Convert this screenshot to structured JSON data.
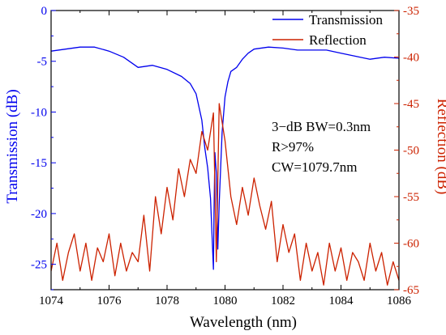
{
  "chart_data": {
    "type": "line",
    "xlabel": "Wavelength (nm)",
    "ylabel_left": "Transmission (dB)",
    "ylabel_right": "Reflection (dB)",
    "xlim": [
      1074,
      1086
    ],
    "ylim_left": [
      -27.5,
      0
    ],
    "ylim_right": [
      -65,
      -35
    ],
    "x_ticks": [
      1074,
      1076,
      1078,
      1080,
      1082,
      1084,
      1086
    ],
    "y_left_ticks": [
      0,
      -5,
      -10,
      -15,
      -20,
      -25
    ],
    "y_right_ticks": [
      -35,
      -40,
      -45,
      -50,
      -55,
      -60,
      -65
    ],
    "x_tick_labels": [
      "1074",
      "1076",
      "1078",
      "1080",
      "1082",
      "1084",
      "1086"
    ],
    "y_left_tick_labels": [
      "0",
      "-5",
      "-10",
      "-15",
      "-20",
      "-25"
    ],
    "y_right_tick_labels": [
      "-35",
      "-40",
      "-45",
      "-50",
      "-55",
      "-60",
      "-65"
    ],
    "legend_position": "top-right",
    "grid": false,
    "series": [
      {
        "name": "Transmission",
        "axis": "left",
        "color": "#0000ee",
        "x": [
          1074.0,
          1074.5,
          1075.0,
          1075.5,
          1076.0,
          1076.5,
          1077.0,
          1077.5,
          1078.0,
          1078.5,
          1078.8,
          1079.0,
          1079.2,
          1079.3,
          1079.4,
          1079.5,
          1079.6,
          1079.62,
          1079.65,
          1079.7,
          1079.75,
          1079.8,
          1079.9,
          1080.0,
          1080.1,
          1080.2,
          1080.4,
          1080.6,
          1080.8,
          1081.0,
          1081.5,
          1082.0,
          1082.5,
          1083.0,
          1083.5,
          1084.0,
          1084.5,
          1085.0,
          1085.5,
          1086.0
        ],
        "y": [
          -4.0,
          -3.8,
          -3.6,
          -3.6,
          -4.0,
          -4.6,
          -5.6,
          -5.4,
          -5.8,
          -6.5,
          -7.2,
          -8.2,
          -10.8,
          -13.5,
          -15.5,
          -18.5,
          -25.5,
          -20.0,
          -14.0,
          -16.0,
          -23.5,
          -19.0,
          -12.0,
          -8.5,
          -7.0,
          -6.0,
          -5.6,
          -4.8,
          -4.2,
          -3.8,
          -3.6,
          -3.7,
          -3.9,
          -3.9,
          -3.9,
          -4.2,
          -4.5,
          -4.8,
          -4.6,
          -4.7
        ]
      },
      {
        "name": "Reflection",
        "axis": "right",
        "color": "#cc2200",
        "x": [
          1074.0,
          1074.2,
          1074.4,
          1074.6,
          1074.8,
          1075.0,
          1075.2,
          1075.4,
          1075.6,
          1075.8,
          1076.0,
          1076.2,
          1076.4,
          1076.6,
          1076.8,
          1077.0,
          1077.2,
          1077.4,
          1077.6,
          1077.8,
          1078.0,
          1078.2,
          1078.4,
          1078.6,
          1078.8,
          1079.0,
          1079.2,
          1079.4,
          1079.6,
          1079.7,
          1079.8,
          1080.0,
          1080.2,
          1080.4,
          1080.6,
          1080.8,
          1081.0,
          1081.2,
          1081.4,
          1081.6,
          1081.8,
          1082.0,
          1082.2,
          1082.4,
          1082.6,
          1082.8,
          1083.0,
          1083.2,
          1083.4,
          1083.6,
          1083.8,
          1084.0,
          1084.2,
          1084.4,
          1084.6,
          1084.8,
          1085.0,
          1085.2,
          1085.4,
          1085.6,
          1085.8,
          1086.0
        ],
        "y": [
          -63.0,
          -60.0,
          -64.0,
          -61.0,
          -59.0,
          -63.0,
          -60.0,
          -64.0,
          -60.5,
          -62.0,
          -59.0,
          -63.5,
          -60.0,
          -63.0,
          -61.0,
          -62.0,
          -57.0,
          -63.0,
          -55.0,
          -59.0,
          -54.0,
          -57.5,
          -52.0,
          -55.0,
          -51.0,
          -52.5,
          -48.0,
          -50.0,
          -46.0,
          -62.0,
          -45.0,
          -49.0,
          -55.0,
          -58.0,
          -54.0,
          -57.0,
          -53.0,
          -56.0,
          -58.5,
          -55.5,
          -62.0,
          -58.0,
          -61.0,
          -59.0,
          -64.0,
          -60.0,
          -63.0,
          -61.0,
          -64.5,
          -60.0,
          -63.0,
          -60.5,
          -64.0,
          -61.0,
          -62.0,
          -64.0,
          -60.0,
          -63.0,
          -61.0,
          -64.5,
          -62.0,
          -64.0
        ]
      }
    ],
    "annotations": [
      "3−dB BW=0.3nm",
      "R>97%",
      "CW=1079.7nm"
    ]
  }
}
